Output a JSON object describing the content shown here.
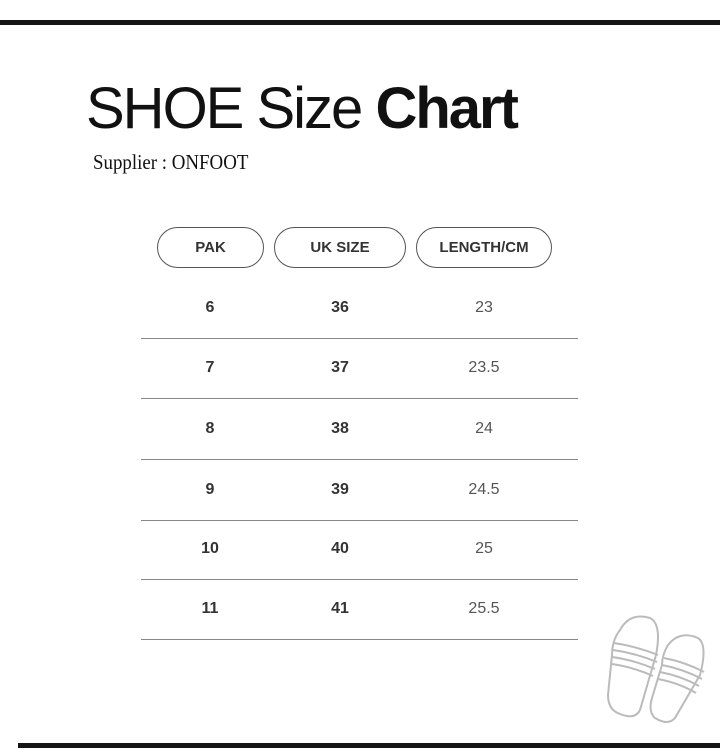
{
  "title": {
    "regular": "SHOE Size",
    "bold": "Chart"
  },
  "supplier": "Supplier : ONFOOT",
  "table": {
    "headers": [
      "PAK",
      "UK SIZE",
      "LENGTH/CM"
    ],
    "rows": [
      [
        "6",
        "36",
        "23"
      ],
      [
        "7",
        "37",
        "23.5"
      ],
      [
        "8",
        "38",
        "24"
      ],
      [
        "9",
        "39",
        "24.5"
      ],
      [
        "10",
        "40",
        "25"
      ],
      [
        "11",
        "41",
        "25.5"
      ]
    ]
  },
  "decoration": {
    "icon": "sandals-icon"
  }
}
